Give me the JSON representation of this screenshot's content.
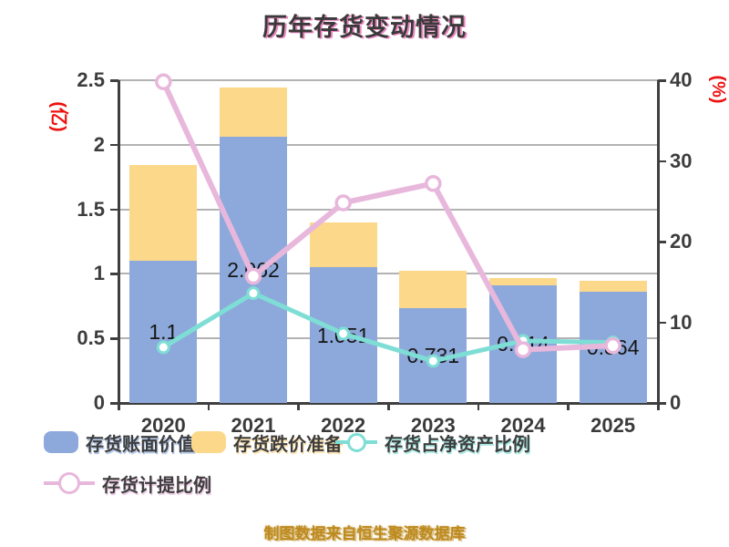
{
  "title": "历年存货变动情况",
  "footer": "制图数据来自恒生聚源数据库",
  "axes": {
    "left": {
      "label": "(亿)",
      "ticks": [
        "0",
        "0.5",
        "1",
        "1.5",
        "2",
        "2.5"
      ],
      "tick_values": [
        0,
        0.5,
        1,
        1.5,
        2,
        2.5
      ],
      "max": 2.5
    },
    "right": {
      "label": "(%)",
      "ticks": [
        "0",
        "10",
        "20",
        "30",
        "40"
      ],
      "tick_values": [
        0,
        10,
        20,
        30,
        40
      ],
      "max": 40
    }
  },
  "colors": {
    "bar_blue": "#8da9db",
    "bar_orange": "#fcd88b",
    "line_teal": "#7eded5",
    "line_pink": "#e8b7dc",
    "axis_label_red": "#ee1111",
    "grid": "#b3b3b3",
    "axis_line": "#3f3f3f",
    "text": "#3a3a3a",
    "title_shadow": "#e75fae",
    "footer_gold": "#bd8a1e"
  },
  "legend": {
    "row1": [
      {
        "label": "存货账面价值",
        "marker": "rect",
        "color": "#8da9db"
      },
      {
        "label": "存货跌价准备",
        "marker": "rect",
        "color": "#fcd88b"
      },
      {
        "label": "存货占净资产比例",
        "marker": "line",
        "color": "#7eded5"
      }
    ],
    "row2": [
      {
        "label": "存货计提比例",
        "marker": "line",
        "color": "#e8b7dc"
      }
    ]
  },
  "chart_data": {
    "type": "bar",
    "subtype": "stacked-bars-with-two-overlay-lines-dual-axis",
    "categories": [
      "2020",
      "2021",
      "2022",
      "2023",
      "2024",
      "2025"
    ],
    "series": [
      {
        "name": "存货账面价值",
        "type": "bar",
        "stack": true,
        "axis": "left",
        "color": "#8da9db",
        "values": [
          1.1,
          2.062,
          1.051,
          0.731,
          0.914,
          0.864
        ],
        "labels": [
          "1.1",
          "2.062",
          "1.051",
          "0.731",
          "0.914",
          "0.864"
        ]
      },
      {
        "name": "存货跌价准备",
        "type": "bar",
        "stack": true,
        "axis": "left",
        "color": "#fcd88b",
        "values": [
          0.74,
          0.38,
          0.35,
          0.29,
          0.05,
          0.08
        ]
      },
      {
        "name": "存货占净资产比例",
        "type": "line",
        "axis": "right",
        "color": "#7eded5",
        "values": [
          6.9,
          13.6,
          8.6,
          5.2,
          7.7,
          7.5
        ]
      },
      {
        "name": "存货计提比例",
        "type": "line",
        "axis": "right",
        "color": "#e8b7dc",
        "values": [
          39.8,
          15.7,
          24.8,
          27.2,
          6.6,
          7.1
        ]
      }
    ],
    "left_axis_range": [
      0,
      2.5
    ],
    "right_axis_range": [
      0,
      40
    ],
    "grid": true,
    "legend_position": "bottom-left",
    "title": "历年存货变动情况",
    "source_note": "制图数据来自恒生聚源数据库"
  }
}
